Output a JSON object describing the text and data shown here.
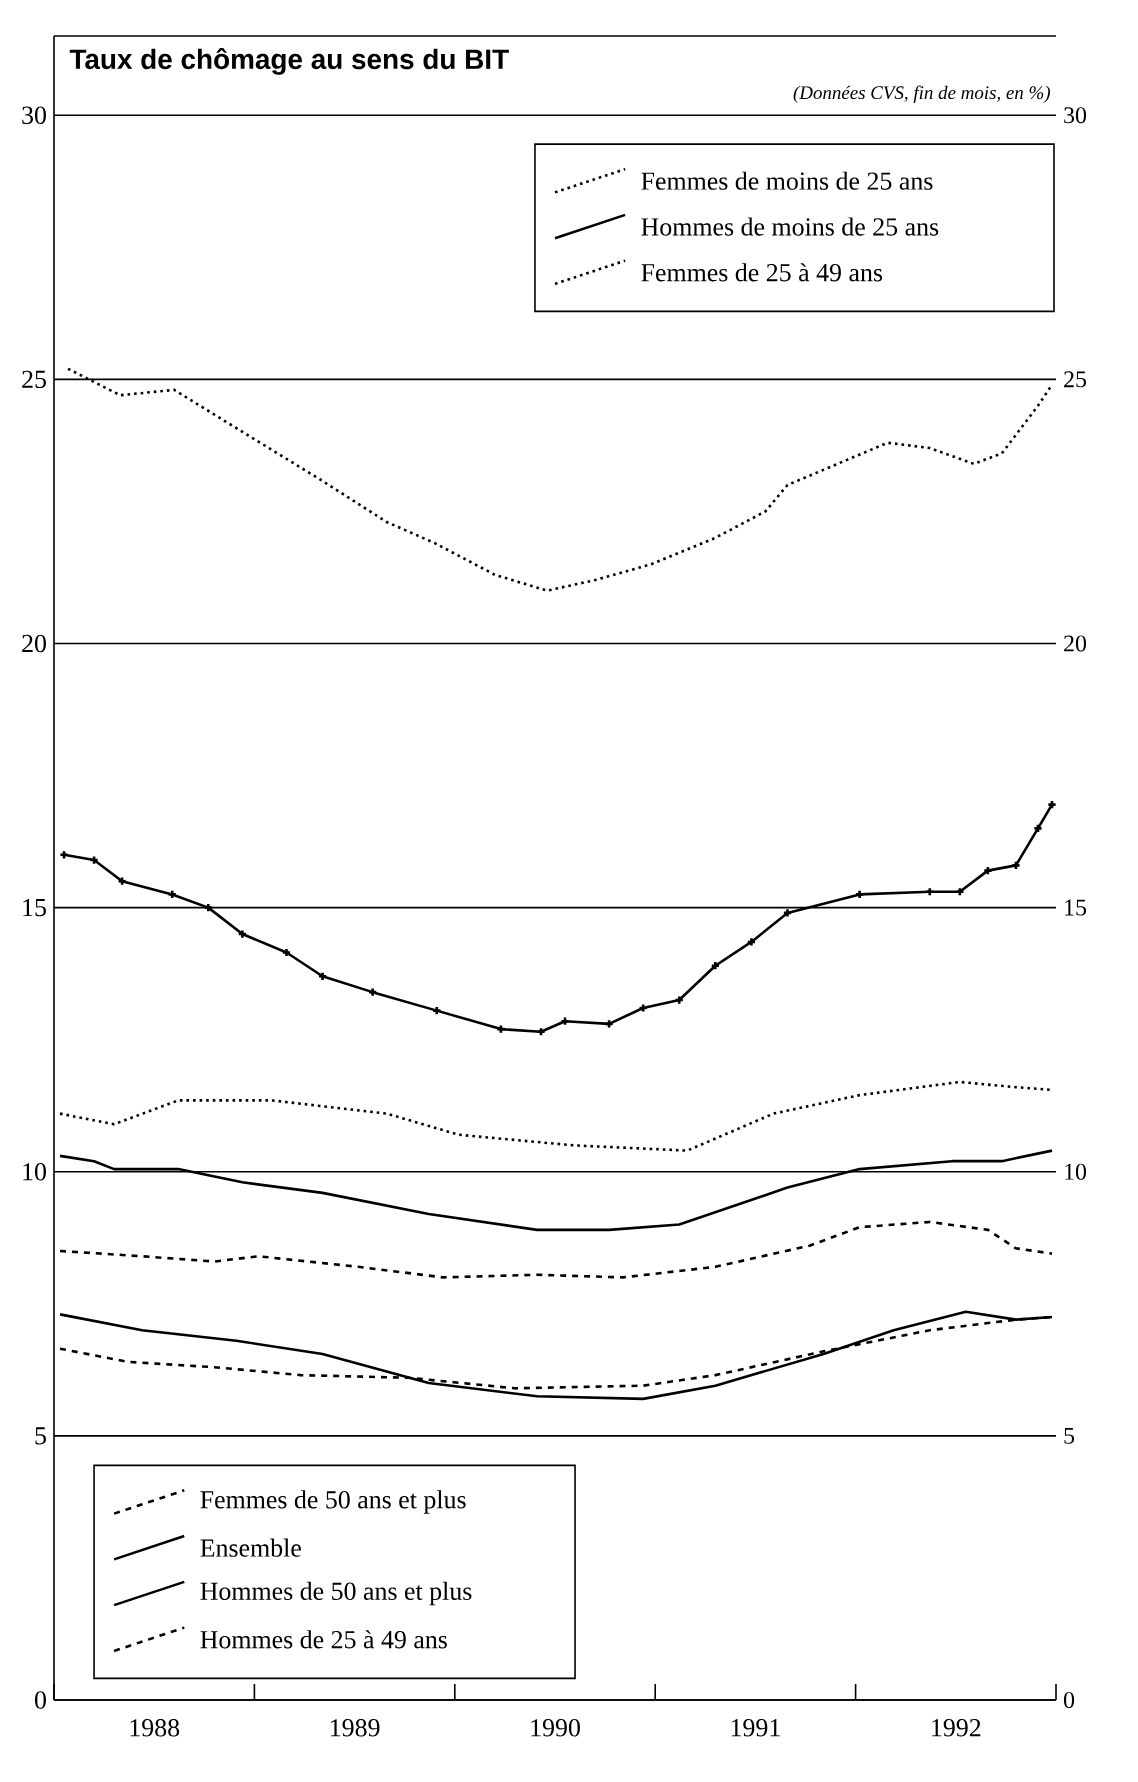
{
  "chart_data": {
    "type": "line",
    "title": "Taux de chômage au sens du BIT",
    "subtitle": "(Données CVS, fin de mois, en %)",
    "xlim": [
      1988,
      1993
    ],
    "xticks": [
      {
        "value": 1988,
        "label": null
      },
      {
        "value": 1988.5,
        "label": "1988"
      },
      {
        "value": 1989,
        "label": null
      },
      {
        "value": 1989.5,
        "label": "1989"
      },
      {
        "value": 1990,
        "label": null
      },
      {
        "value": 1990.5,
        "label": "1990"
      },
      {
        "value": 1991,
        "label": null
      },
      {
        "value": 1991.5,
        "label": "1991"
      },
      {
        "value": 1992,
        "label": null
      },
      {
        "value": 1992.5,
        "label": "1992"
      },
      {
        "value": 1993,
        "label": null
      }
    ],
    "ylim": [
      0,
      31.5
    ],
    "yticks": [
      0,
      5,
      10,
      15,
      20,
      25,
      30
    ],
    "y2lim": [
      0,
      31.5
    ],
    "y2ticks": [
      0,
      5,
      10,
      15,
      20,
      25,
      30
    ],
    "grid": "y",
    "legend": [
      "top right",
      "bottom left"
    ],
    "series": [
      {
        "name": "Femmes de moins de 25 ans",
        "color": "#000000",
        "line_style": "dotted",
        "x": [
          1988.07,
          1988.33,
          1988.6,
          1988.9,
          1989.33,
          1989.66,
          1989.9,
          1990.2,
          1990.46,
          1990.7,
          1990.98,
          1991.3,
          1991.55,
          1991.66,
          1992.16,
          1992.37,
          1992.59,
          1992.73,
          1992.91,
          1992.98
        ],
        "values": [
          25.2,
          24.7,
          24.8,
          24.1,
          23.1,
          22.3,
          21.9,
          21.3,
          21.0,
          21.2,
          21.5,
          22.0,
          22.5,
          23.0,
          23.8,
          23.7,
          23.4,
          23.6,
          24.5,
          24.9
        ]
      },
      {
        "name": "Hommes de moins de 25 ans",
        "color": "#000000",
        "line_style": "solid",
        "marker": "cross",
        "x": [
          1988.05,
          1988.2,
          1988.34,
          1988.59,
          1988.77,
          1988.94,
          1989.16,
          1989.34,
          1989.59,
          1989.91,
          1990.23,
          1990.43,
          1990.55,
          1990.77,
          1990.94,
          1991.12,
          1991.3,
          1991.48,
          1991.66,
          1992.02,
          1992.37,
          1992.52,
          1992.66,
          1992.8,
          1992.91,
          1992.98
        ],
        "values": [
          16.0,
          15.9,
          15.5,
          15.25,
          15.0,
          14.5,
          14.15,
          13.7,
          13.4,
          13.05,
          12.7,
          12.65,
          12.85,
          12.8,
          13.1,
          13.25,
          13.9,
          14.35,
          14.9,
          15.25,
          15.3,
          15.3,
          15.7,
          15.8,
          16.5,
          16.95
        ]
      },
      {
        "name": "Femmes de 25 à 49 ans",
        "color": "#000000",
        "line_style": "dotted",
        "x": [
          1988.03,
          1988.3,
          1988.62,
          1989.09,
          1989.66,
          1990.02,
          1990.59,
          1991.16,
          1991.59,
          1992.02,
          1992.52,
          1992.8,
          1992.98
        ],
        "values": [
          11.1,
          10.9,
          11.35,
          11.35,
          11.1,
          10.7,
          10.5,
          10.4,
          11.1,
          11.45,
          11.7,
          11.6,
          11.55
        ]
      },
      {
        "name": "Femmes de 50 ans et plus",
        "color": "#000000",
        "line_style": "dashed",
        "x": [
          1988.03,
          1988.44,
          1988.8,
          1989.02,
          1989.52,
          1989.94,
          1990.41,
          1990.84,
          1991.3,
          1991.77,
          1992.02,
          1992.37,
          1992.66,
          1992.8,
          1992.98
        ],
        "values": [
          8.5,
          8.4,
          8.3,
          8.4,
          8.2,
          8.0,
          8.05,
          8.0,
          8.2,
          8.6,
          8.95,
          9.05,
          8.9,
          8.55,
          8.45
        ]
      },
      {
        "name": "Ensemble",
        "color": "#000000",
        "line_style": "solid",
        "x": [
          1988.03,
          1988.2,
          1988.3,
          1988.62,
          1988.94,
          1989.34,
          1989.87,
          1990.41,
          1990.77,
          1991.12,
          1991.66,
          1992.02,
          1992.48,
          1992.73,
          1992.98
        ],
        "values": [
          10.3,
          10.2,
          10.05,
          10.05,
          9.8,
          9.6,
          9.2,
          8.9,
          8.9,
          9.0,
          9.7,
          10.05,
          10.2,
          10.2,
          10.4
        ]
      },
      {
        "name": "Hommes de 50 ans et plus",
        "color": "#000000",
        "line_style": "solid",
        "x": [
          1988.03,
          1988.44,
          1988.91,
          1989.34,
          1989.87,
          1990.41,
          1990.94,
          1991.3,
          1991.84,
          1992.19,
          1992.55,
          1992.8,
          1992.98
        ],
        "values": [
          7.3,
          7.0,
          6.8,
          6.55,
          6.0,
          5.75,
          5.7,
          5.95,
          6.55,
          7.0,
          7.35,
          7.2,
          7.25
        ]
      },
      {
        "name": "Hommes de 25 à 49 ans",
        "color": "#000000",
        "line_style": "dashed",
        "x": [
          1988.03,
          1988.37,
          1988.8,
          1989.23,
          1989.77,
          1990.3,
          1990.94,
          1991.3,
          1991.84,
          1992.37,
          1992.8,
          1992.98
        ],
        "values": [
          6.65,
          6.4,
          6.3,
          6.15,
          6.1,
          5.9,
          5.95,
          6.15,
          6.6,
          7.0,
          7.2,
          7.25
        ]
      }
    ]
  }
}
